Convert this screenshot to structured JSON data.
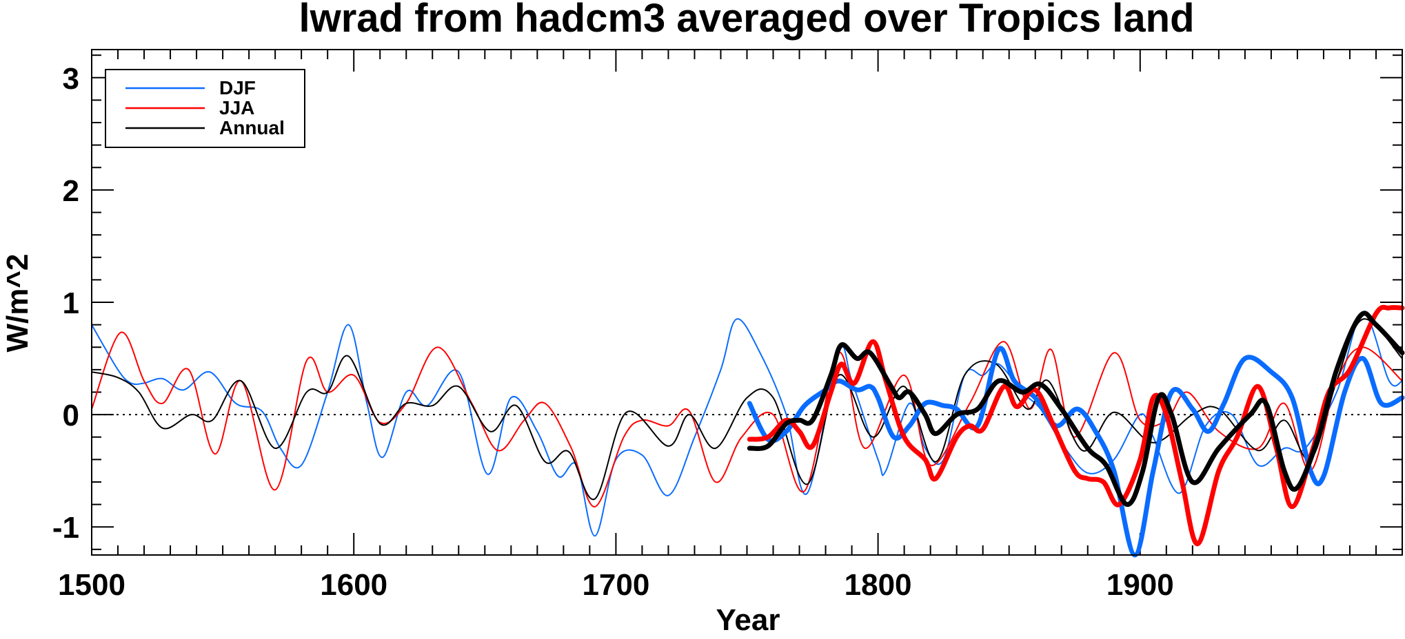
{
  "chart_data": {
    "type": "line",
    "title": "lwrad from hadcm3 averaged over Tropics land",
    "xlabel": "Year",
    "ylabel": "W/m^2",
    "xlim": [
      1500,
      2000
    ],
    "ylim": [
      -1.25,
      3.25
    ],
    "xticks": [
      1500,
      1600,
      1700,
      1800,
      1900
    ],
    "yticks": [
      -1,
      0,
      1,
      2,
      3
    ],
    "zero_line": "dotted",
    "legend": {
      "placement": "top-left",
      "entries": [
        "DJF",
        "JJA",
        "Annual"
      ]
    },
    "colors": {
      "DJF": "#0a6cff",
      "JJA": "#ff0000",
      "Annual": "#000000"
    },
    "series": [
      {
        "name": "DJF",
        "style": "thin",
        "x": [
          1500,
          1510,
          1515,
          1520,
          1527,
          1535,
          1545,
          1555,
          1565,
          1572,
          1580,
          1590,
          1598,
          1605,
          1611,
          1620,
          1628,
          1640,
          1651,
          1660,
          1670,
          1678,
          1685,
          1692,
          1700,
          1710,
          1720,
          1730,
          1740,
          1746,
          1755,
          1765,
          1773,
          1785,
          1790,
          1800,
          1803,
          1812,
          1818,
          1825,
          1833,
          1840,
          1846,
          1855,
          1862,
          1870,
          1880,
          1890,
          1900,
          1905,
          1915,
          1925,
          1935,
          1945,
          1955,
          1963,
          1975,
          1985,
          1995,
          2000
        ],
        "y": [
          0.8,
          0.4,
          0.28,
          0.28,
          0.32,
          0.22,
          0.38,
          0.1,
          0.03,
          -0.3,
          -0.45,
          0.2,
          0.8,
          0.1,
          -0.38,
          0.2,
          0.08,
          0.38,
          -0.53,
          0.15,
          -0.15,
          -0.55,
          -0.45,
          -1.08,
          -0.4,
          -0.36,
          -0.72,
          -0.2,
          0.4,
          0.85,
          0.55,
          0.0,
          -0.7,
          0.55,
          0.3,
          -0.4,
          -0.5,
          0.1,
          -0.3,
          -0.4,
          0.35,
          0.35,
          0.45,
          0.2,
          0.05,
          -0.25,
          -0.52,
          -0.4,
          0.0,
          -0.2,
          -0.7,
          -0.1,
          0.0,
          -0.45,
          -0.3,
          -0.3,
          0.2,
          0.9,
          0.3,
          0.3
        ]
      },
      {
        "name": "JJA",
        "style": "thin",
        "x": [
          1500,
          1511,
          1520,
          1527,
          1537,
          1547,
          1557,
          1570,
          1582,
          1590,
          1600,
          1610,
          1620,
          1632,
          1645,
          1655,
          1665,
          1673,
          1683,
          1692,
          1703,
          1710,
          1720,
          1728,
          1738,
          1748,
          1760,
          1772,
          1785,
          1795,
          1810,
          1820,
          1835,
          1848,
          1858,
          1866,
          1875,
          1890,
          1900,
          1910,
          1918,
          1930,
          1945,
          1955,
          1965,
          1975,
          1985,
          2000
        ],
        "y": [
          0.05,
          0.73,
          0.3,
          0.1,
          0.4,
          -0.35,
          0.3,
          -0.67,
          0.48,
          0.2,
          0.35,
          -0.07,
          0.1,
          0.6,
          0.1,
          -0.32,
          -0.05,
          0.1,
          -0.3,
          -0.82,
          -0.2,
          -0.05,
          -0.1,
          0.03,
          -0.6,
          -0.2,
          0.0,
          -0.68,
          0.55,
          -0.3,
          0.35,
          -0.45,
          0.1,
          0.65,
          0.05,
          0.58,
          -0.2,
          0.55,
          -0.05,
          -0.05,
          0.2,
          -0.15,
          -0.3,
          0.1,
          -0.5,
          0.3,
          0.6,
          0.3
        ]
      },
      {
        "name": "Annual",
        "style": "thin",
        "x": [
          1500,
          1510,
          1518,
          1527,
          1538,
          1546,
          1557,
          1570,
          1582,
          1590,
          1598,
          1610,
          1620,
          1630,
          1640,
          1652,
          1662,
          1673,
          1682,
          1692,
          1704,
          1720,
          1728,
          1738,
          1750,
          1760,
          1773,
          1785,
          1798,
          1810,
          1822,
          1833,
          1845,
          1857,
          1865,
          1878,
          1890,
          1905,
          1920,
          1930,
          1945,
          1955,
          1965,
          1975,
          1985,
          2000
        ],
        "y": [
          0.38,
          0.33,
          0.2,
          -0.12,
          0.0,
          -0.05,
          0.3,
          -0.3,
          0.2,
          0.2,
          0.52,
          -0.08,
          0.1,
          0.08,
          0.25,
          -0.15,
          0.08,
          -0.42,
          -0.33,
          -0.75,
          0.02,
          -0.28,
          0.0,
          -0.3,
          0.15,
          0.15,
          -0.62,
          0.35,
          -0.2,
          0.25,
          -0.42,
          0.35,
          0.45,
          0.05,
          0.3,
          -0.32,
          0.02,
          -0.25,
          0.0,
          0.05,
          -0.32,
          -0.05,
          -0.4,
          0.3,
          0.85,
          0.5
        ]
      },
      {
        "name": "DJF",
        "style": "thick",
        "x": [
          1751,
          1758,
          1765,
          1772,
          1780,
          1785,
          1792,
          1797,
          1800,
          1806,
          1812,
          1818,
          1825,
          1830,
          1838,
          1846,
          1852,
          1860,
          1868,
          1876,
          1883,
          1890,
          1898,
          1905,
          1912,
          1920,
          1926,
          1932,
          1940,
          1950,
          1958,
          1965,
          1970,
          1978,
          1985,
          1992,
          2000
        ],
        "y": [
          0.1,
          -0.22,
          -0.15,
          0.08,
          0.22,
          0.3,
          0.22,
          0.25,
          0.15,
          -0.2,
          -0.1,
          0.1,
          0.08,
          0.05,
          -0.1,
          0.58,
          0.3,
          0.15,
          -0.1,
          0.05,
          -0.15,
          -0.5,
          -1.25,
          -0.5,
          0.2,
          0.05,
          -0.15,
          0.1,
          0.5,
          0.38,
          0.15,
          -0.5,
          -0.55,
          0.2,
          0.5,
          0.1,
          0.15
        ]
      },
      {
        "name": "JJA",
        "style": "thick",
        "x": [
          1751,
          1758,
          1765,
          1770,
          1775,
          1782,
          1786,
          1791,
          1798,
          1803,
          1810,
          1818,
          1822,
          1830,
          1835,
          1840,
          1848,
          1853,
          1860,
          1867,
          1875,
          1880,
          1886,
          1892,
          1900,
          1905,
          1910,
          1916,
          1922,
          1930,
          1937,
          1945,
          1952,
          1958,
          1966,
          1972,
          1980,
          1990,
          1995,
          2000
        ],
        "y": [
          -0.22,
          -0.2,
          -0.05,
          -0.15,
          -0.28,
          0.2,
          0.45,
          0.28,
          0.65,
          0.3,
          -0.2,
          -0.4,
          -0.57,
          -0.2,
          -0.1,
          -0.13,
          0.25,
          0.07,
          0.22,
          -0.1,
          -0.5,
          -0.57,
          -0.6,
          -0.8,
          -0.4,
          0.15,
          0.0,
          -0.6,
          -1.15,
          -0.5,
          -0.2,
          0.25,
          -0.3,
          -0.82,
          -0.3,
          0.2,
          0.4,
          0.9,
          0.95,
          0.95
        ]
      },
      {
        "name": "Annual",
        "style": "thick",
        "x": [
          1751,
          1758,
          1765,
          1770,
          1775,
          1782,
          1786,
          1792,
          1797,
          1805,
          1808,
          1812,
          1818,
          1822,
          1830,
          1838,
          1846,
          1855,
          1862,
          1870,
          1880,
          1887,
          1895,
          1901,
          1907,
          1912,
          1920,
          1930,
          1942,
          1948,
          1955,
          1960,
          1968,
          1975,
          1984,
          1990,
          2000
        ],
        "y": [
          -0.3,
          -0.28,
          -0.08,
          -0.05,
          -0.05,
          0.35,
          0.62,
          0.5,
          0.55,
          0.25,
          0.15,
          0.2,
          0.0,
          -0.17,
          0.0,
          0.05,
          0.3,
          0.2,
          0.27,
          0.05,
          -0.3,
          -0.45,
          -0.8,
          -0.5,
          0.15,
          0.0,
          -0.6,
          -0.3,
          0.0,
          0.1,
          -0.5,
          -0.65,
          -0.2,
          0.4,
          0.88,
          0.8,
          0.55
        ]
      }
    ]
  }
}
